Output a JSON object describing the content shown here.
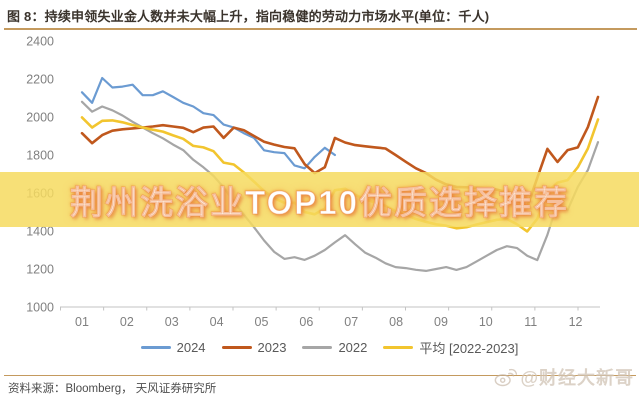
{
  "title": "图 8：持续申领失业金人数并未大幅上升，指向稳健的劳动力市场水平(单位：千人)",
  "overlay": {
    "text": "荆州洗浴业TOP10优质选择推荐"
  },
  "source": {
    "text": "资料来源：Bloomberg， 天风证券研究所"
  },
  "watermark": {
    "icon": "weibo-icon",
    "text": "@财经大新哥"
  },
  "chart_data": {
    "type": "line",
    "title": "持续申领失业金人数（单位：千人）",
    "x_frequency": "weekly",
    "categories": [
      "01",
      "02",
      "03",
      "04",
      "05",
      "06",
      "07",
      "08",
      "09",
      "10",
      "11",
      "12"
    ],
    "xlabel": "",
    "ylabel": "",
    "ylim": [
      1000,
      2400
    ],
    "yticks": [
      2400,
      2200,
      2000,
      1800,
      1600,
      1400,
      1200,
      1000
    ],
    "grid": false,
    "legend_position": "bottom",
    "series": [
      {
        "name": "2024",
        "color": "#6b9bd2",
        "width": 2.2,
        "values": [
          2130,
          2075,
          2205,
          2155,
          2160,
          2170,
          2115,
          2115,
          2135,
          2105,
          2075,
          2055,
          2020,
          2010,
          1960,
          1945,
          1915,
          1890,
          1825,
          1815,
          1810,
          1745,
          1730,
          1790,
          1838,
          1800
        ]
      },
      {
        "name": "2023",
        "color": "#c0581d",
        "width": 2.6,
        "values": [
          1915,
          1862,
          1905,
          1928,
          1935,
          1940,
          1945,
          1950,
          1957,
          1950,
          1943,
          1920,
          1944,
          1950,
          1890,
          1944,
          1930,
          1900,
          1870,
          1855,
          1842,
          1835,
          1752,
          1705,
          1735,
          1890,
          1866,
          1852,
          1846,
          1840,
          1834,
          1800,
          1764,
          1730,
          1705,
          1670,
          1645,
          1632,
          1630,
          1628,
          1624,
          1618,
          1605,
          1560,
          1526,
          1680,
          1832,
          1763,
          1826,
          1840,
          1947,
          2105
        ]
      },
      {
        "name": "2022",
        "color": "#a6a6a6",
        "width": 2.2,
        "values": [
          2080,
          2028,
          2055,
          2035,
          2008,
          1975,
          1945,
          1915,
          1888,
          1855,
          1826,
          1775,
          1735,
          1690,
          1630,
          1555,
          1485,
          1420,
          1350,
          1290,
          1253,
          1262,
          1248,
          1270,
          1300,
          1340,
          1378,
          1330,
          1285,
          1260,
          1230,
          1210,
          1205,
          1196,
          1190,
          1200,
          1210,
          1195,
          1210,
          1240,
          1270,
          1300,
          1320,
          1310,
          1270,
          1247,
          1380,
          1547,
          1510,
          1632,
          1721,
          1868
        ]
      },
      {
        "name": "平均 [2022-2023]",
        "color": "#f2c52f",
        "width": 2.6,
        "values": [
          1998,
          1945,
          1980,
          1982,
          1972,
          1958,
          1945,
          1933,
          1923,
          1903,
          1885,
          1848,
          1840,
          1820,
          1760,
          1750,
          1708,
          1660,
          1610,
          1573,
          1548,
          1549,
          1500,
          1488,
          1518,
          1615,
          1622,
          1591,
          1566,
          1550,
          1532,
          1505,
          1485,
          1463,
          1448,
          1435,
          1428,
          1414,
          1420,
          1434,
          1447,
          1459,
          1463,
          1435,
          1398,
          1464,
          1606,
          1655,
          1668,
          1736,
          1834,
          1987
        ]
      }
    ]
  }
}
